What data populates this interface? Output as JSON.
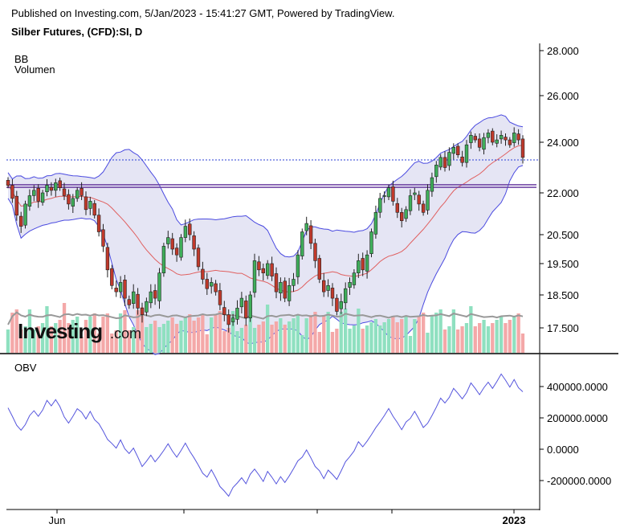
{
  "header": {
    "published": "Published on Investing.com, 5/Jan/2023 - 15:41:27 GMT, Powered by TradingView.",
    "instrument": "Silber Futures, (CFD):SI, D"
  },
  "legend": {
    "indicator1": "BB",
    "indicator2": "Volumen",
    "obv": "OBV"
  },
  "logo": {
    "brand": "Investing",
    "suffix": ".com"
  },
  "colors": {
    "up": "#3fae5a",
    "down": "#c0392b",
    "bb_band": "#4a4ae0",
    "bb_fill": "#dcdcf0",
    "bb_mid": "#e06060",
    "vol_up": "#8fe0c0",
    "vol_down": "#f4a8a8",
    "vol_ma": "#999999",
    "obv_line": "#5555dd",
    "resistance": "#6b3fa0",
    "price_line": "#2a3fd6"
  },
  "chart_data": [
    {
      "type": "candlestick",
      "title": "Silber Futures, (CFD):SI, D",
      "y_ticks": [
        "28.000",
        "26.000",
        "24.000",
        "22.000",
        "20.500",
        "19.500",
        "18.500",
        "17.500"
      ],
      "y_tick_values": [
        28.0,
        26.0,
        24.0,
        22.0,
        20.5,
        19.5,
        18.5,
        17.5
      ],
      "x_ticks": [
        "Jun",
        "2023"
      ],
      "horizontal_levels": [
        22.32,
        22.22
      ],
      "last_price_line": 23.3,
      "close_series": [
        22.3,
        21.8,
        21.2,
        20.8,
        21.6,
        21.9,
        22.1,
        21.7,
        22.0,
        22.3,
        22.1,
        22.4,
        22.2,
        21.9,
        21.6,
        21.8,
        22.1,
        21.9,
        21.4,
        21.7,
        21.2,
        20.6,
        20.1,
        19.3,
        18.8,
        18.6,
        18.9,
        18.4,
        18.2,
        18.6,
        18.1,
        17.9,
        18.3,
        18.6,
        18.4,
        19.2,
        20.1,
        20.4,
        20.0,
        19.8,
        20.4,
        20.8,
        20.5,
        20.0,
        19.4,
        19.0,
        18.7,
        18.9,
        18.6,
        18.2,
        17.9,
        17.6,
        17.8,
        18.1,
        18.4,
        17.8,
        18.5,
        19.6,
        19.3,
        19.2,
        19.5,
        19.1,
        18.6,
        18.9,
        18.4,
        18.8,
        19.0,
        19.8,
        20.6,
        20.9,
        20.2,
        19.6,
        19.0,
        18.6,
        18.8,
        18.4,
        18.0,
        18.3,
        18.7,
        18.9,
        19.2,
        19.6,
        19.3,
        19.8,
        20.6,
        21.3,
        21.8,
        21.9,
        22.2,
        21.7,
        21.3,
        21.0,
        21.4,
        21.9,
        22.0,
        21.6,
        21.3,
        22.1,
        22.6,
        23.1,
        23.4,
        23.0,
        23.6,
        23.8,
        23.5,
        23.2,
        23.9,
        24.3,
        24.1,
        23.8,
        24.2,
        24.4,
        24.0,
        24.1,
        24.3,
        24.1,
        23.9,
        24.4,
        24.1,
        23.4
      ]
    },
    {
      "type": "bar",
      "title": "Volumen",
      "series_name": "Volumen"
    },
    {
      "type": "line",
      "title": "OBV",
      "y_ticks": [
        "400000.0000",
        "200000.0000",
        "0.0000",
        "-200000.0000"
      ],
      "y_tick_values": [
        400000,
        200000,
        0,
        -200000
      ]
    }
  ]
}
